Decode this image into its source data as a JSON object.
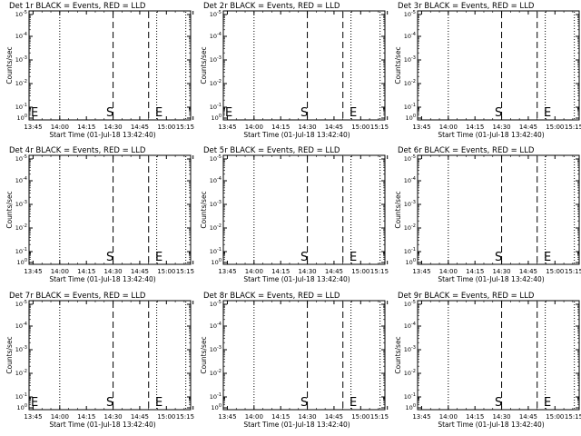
{
  "chart_data": [
    {
      "type": "line",
      "title": "Det 1r BLACK = Events, RED = LLD",
      "xlabel": "Start Time (01-Jul-18 13:42:40)",
      "ylabel": "Counts/sec",
      "x_tick_labels": [
        "13:45",
        "14:00",
        "14:15",
        "14:30",
        "14:45",
        "15:00",
        "15:15"
      ],
      "y_tick_labels": [
        "10^0",
        "10^-1",
        "10^-2",
        "10^-3",
        "10^-4",
        "10^-5"
      ],
      "y_scale": "log",
      "series": [],
      "markers": [
        {
          "label": "S",
          "style": "dashed"
        },
        {
          "label": "E",
          "style": "dashed"
        }
      ],
      "marker_text": {
        "start": "S",
        "end": "E",
        "left": "E"
      },
      "colors": {
        "events": "#000000",
        "lld": "#ff0000"
      }
    },
    {
      "type": "line",
      "title": "Det 2r BLACK = Events, RED = LLD",
      "xlabel": "Start Time (01-Jul-18 13:42:40)",
      "ylabel": "Counts/sec",
      "x_tick_labels": [
        "13:45",
        "14:00",
        "14:15",
        "14:30",
        "14:45",
        "15:00",
        "15:15"
      ],
      "y_tick_labels": [
        "10^0",
        "10^-1",
        "10^-2",
        "10^-3",
        "10^-4",
        "10^-5"
      ],
      "y_scale": "log",
      "series": [],
      "marker_text": {
        "start": "S",
        "end": "E",
        "left": "E"
      }
    },
    {
      "type": "line",
      "title": "Det 3r BLACK = Events, RED = LLD",
      "xlabel": "Start Time (01-Jul-18 13:42:40)",
      "ylabel": "Counts/sec",
      "x_tick_labels": [
        "13:45",
        "14:00",
        "14:15",
        "14:30",
        "14:45",
        "15:00",
        "15:15"
      ],
      "y_tick_labels": [
        "10^0",
        "10^-1",
        "10^-2",
        "10^-3",
        "10^-4",
        "10^-5"
      ],
      "y_scale": "log",
      "series": [],
      "marker_text": {
        "start": "S",
        "end": "E",
        "left": ""
      }
    },
    {
      "type": "line",
      "title": "Det 4r BLACK = Events, RED = LLD",
      "xlabel": "Start Time (01-Jul-18 13:42:40)",
      "ylabel": "Counts/sec",
      "x_tick_labels": [
        "13:45",
        "14:00",
        "14:15",
        "14:30",
        "14:45",
        "15:00",
        "15:15"
      ],
      "y_tick_labels": [
        "10^0",
        "10^-1",
        "10^-2",
        "10^-3",
        "10^-4",
        "10^-5"
      ],
      "y_scale": "log",
      "series": [],
      "marker_text": {
        "start": "S",
        "end": "E",
        "left": ""
      }
    },
    {
      "type": "line",
      "title": "Det 5r BLACK = Events, RED = LLD",
      "xlabel": "Start Time (01-Jul-18 13:42:40)",
      "ylabel": "Counts/sec",
      "x_tick_labels": [
        "13:45",
        "14:00",
        "14:15",
        "14:30",
        "14:45",
        "15:00",
        "15:15"
      ],
      "y_tick_labels": [
        "10^0",
        "10^-1",
        "10^-2",
        "10^-3",
        "10^-4",
        "10^-5"
      ],
      "y_scale": "log",
      "series": [],
      "marker_text": {
        "start": "S",
        "end": "E",
        "left": ""
      }
    },
    {
      "type": "line",
      "title": "Det 6r BLACK = Events, RED = LLD",
      "xlabel": "Start Time (01-Jul-18 13:42:40)",
      "ylabel": "Counts/sec",
      "x_tick_labels": [
        "13:45",
        "14:00",
        "14:15",
        "14:30",
        "14:45",
        "15:00",
        "15:15"
      ],
      "y_tick_labels": [
        "10^0",
        "10^-1",
        "10^-2",
        "10^-3",
        "10^-4",
        "10^-5"
      ],
      "y_scale": "log",
      "series": [],
      "marker_text": {
        "start": "S",
        "end": "E",
        "left": ""
      }
    },
    {
      "type": "line",
      "title": "Det 7r BLACK = Events, RED = LLD",
      "xlabel": "Start Time (01-Jul-18 13:42:40)",
      "ylabel": "Counts/sec",
      "x_tick_labels": [
        "13:45",
        "14:00",
        "14:15",
        "14:30",
        "14:45",
        "15:00",
        "15:15"
      ],
      "y_tick_labels": [
        "10^0",
        "10^-1",
        "10^-2",
        "10^-3",
        "10^-4",
        "10^-5"
      ],
      "y_scale": "log",
      "series": [],
      "marker_text": {
        "start": "S",
        "end": "E",
        "left": "E"
      }
    },
    {
      "type": "line",
      "title": "Det 8r BLACK = Events, RED = LLD",
      "xlabel": "Start Time (01-Jul-18 13:42:40)",
      "ylabel": "Counts/sec",
      "x_tick_labels": [
        "13:45",
        "14:00",
        "14:15",
        "14:30",
        "14:45",
        "15:00",
        "15:15"
      ],
      "y_tick_labels": [
        "10^0",
        "10^-1",
        "10^-2",
        "10^-3",
        "10^-4",
        "10^-5"
      ],
      "y_scale": "log",
      "series": [],
      "marker_text": {
        "start": "S",
        "end": "E",
        "left": ""
      }
    },
    {
      "type": "line",
      "title": "Det 9r BLACK = Events, RED = LLD",
      "xlabel": "Start Time (01-Jul-18 13:42:40)",
      "ylabel": "Counts/sec",
      "x_tick_labels": [
        "13:45",
        "14:00",
        "14:15",
        "14:30",
        "14:45",
        "15:00",
        "15:15"
      ],
      "y_tick_labels": [
        "10^0",
        "10^-1",
        "10^-2",
        "10^-3",
        "10^-4",
        "10^-5"
      ],
      "y_scale": "log",
      "series": [],
      "marker_text": {
        "start": "S",
        "end": "E",
        "left": ""
      }
    }
  ]
}
